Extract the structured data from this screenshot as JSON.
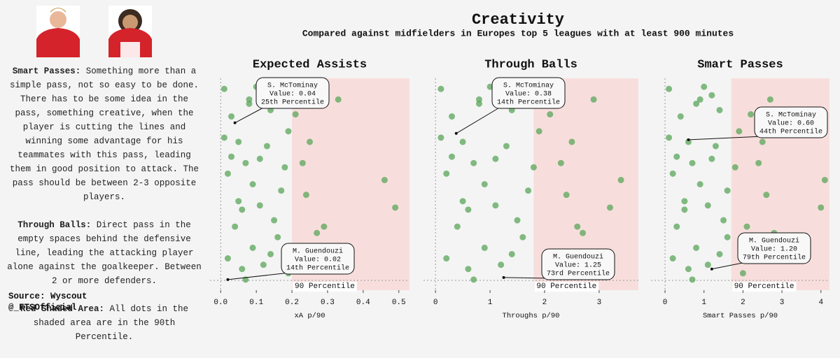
{
  "header": {
    "title": "Creativity",
    "subtitle": "Compared against midfielders in Europes top 5 leagues with at least 900 minutes"
  },
  "sidebar": {
    "items": [
      {
        "label": "Smart Passes:",
        "text": "Something more than a simple pass, not so easy to be done. There has to be some idea in the pass, something creative, when the player is cutting the lines and winning some advantage for his teammates with this pass, leading them in good position to attack. The pass should be between 2-3 opposite players."
      },
      {
        "label": "Through Balls:",
        "text": "Direct pass in the empty spaces behind the defensive line, leading the attacking player alone against the goalkeeper. Between 2 or more defenders."
      },
      {
        "label": "Red Shaded Area:",
        "text": "All dots in the shaded area are in the 90th Percentile."
      }
    ],
    "source": "Source: Wyscout",
    "handle": "@_FTSOfficial"
  },
  "chart_data": [
    {
      "type": "scatter",
      "title": "Expected Assists",
      "x_label": "xA p/90",
      "color": "#5aa55a",
      "shade_color": "#f7dedc",
      "threshold": 0.2,
      "threshold_label": "90 Percentile",
      "xlim": [
        -0.03,
        0.53
      ],
      "ylim": [
        0,
        1
      ],
      "xticks": [
        {
          "value": 0,
          "label": "0.0"
        },
        0.1,
        0.2,
        0.3,
        0.4,
        0.5
      ],
      "x": [
        0.01,
        0.03,
        0.05,
        0.02,
        0.08,
        0.11,
        0.06,
        0.14,
        0.09,
        0.17,
        0.12,
        0.04,
        0.19,
        0.07,
        0.15,
        0.1,
        0.02,
        0.13,
        0.18,
        0.05,
        0.08,
        0.16,
        0.03,
        0.11,
        0.21,
        0.24,
        0.27,
        0.33,
        0.46,
        0.49,
        0.23,
        0.29,
        0.01,
        0.06,
        0.12,
        0.09,
        0.14,
        0.19,
        0.25,
        0.07
      ],
      "y": [
        0.95,
        0.82,
        0.7,
        0.55,
        0.9,
        0.62,
        0.38,
        0.85,
        0.2,
        0.47,
        0.12,
        0.3,
        0.75,
        0.05,
        0.33,
        0.96,
        0.15,
        0.68,
        0.58,
        0.42,
        0.88,
        0.25,
        0.63,
        0.4,
        0.83,
        0.45,
        0.27,
        0.9,
        0.52,
        0.39,
        0.6,
        0.3,
        0.72,
        0.1,
        0.92,
        0.5,
        0.17,
        0.08,
        0.7,
        0.6
      ],
      "highlights": [
        {
          "name": "S. McTominay",
          "value_label": "Value: 0.04",
          "percentile_label": "25th Percentile",
          "x": 0.04,
          "y": 0.79
        },
        {
          "name": "M. Guendouzi",
          "value_label": "Value: 0.02",
          "percentile_label": "14th Percentile",
          "x": 0.02,
          "y": 0.05
        }
      ]
    },
    {
      "type": "scatter",
      "title": "Through Balls",
      "x_label": "Throughs p/90",
      "color": "#5aa55a",
      "shade_color": "#f7dedc",
      "threshold": 1.8,
      "threshold_label": "90 Percentile",
      "xlim": [
        -0.22,
        3.72
      ],
      "ylim": [
        0,
        1
      ],
      "xticks": [
        0,
        1,
        2,
        3
      ],
      "x": [
        0.1,
        0.3,
        0.5,
        0.2,
        0.8,
        1.1,
        0.6,
        1.4,
        0.9,
        1.7,
        1.2,
        0.4,
        1.9,
        0.7,
        1.5,
        1.0,
        0.2,
        1.3,
        1.8,
        0.5,
        0.8,
        1.6,
        0.3,
        1.1,
        2.1,
        2.4,
        2.7,
        2.9,
        3.4,
        3.2,
        2.3,
        2.6,
        0.1,
        0.6,
        1.2,
        0.9,
        1.4,
        2.0,
        2.5,
        0.7
      ],
      "y": [
        0.95,
        0.82,
        0.7,
        0.55,
        0.9,
        0.62,
        0.38,
        0.85,
        0.2,
        0.47,
        0.12,
        0.3,
        0.75,
        0.05,
        0.33,
        0.96,
        0.15,
        0.68,
        0.58,
        0.42,
        0.88,
        0.25,
        0.63,
        0.4,
        0.83,
        0.45,
        0.27,
        0.9,
        0.52,
        0.39,
        0.6,
        0.3,
        0.72,
        0.1,
        0.92,
        0.5,
        0.17,
        0.08,
        0.7,
        0.6
      ],
      "highlights": [
        {
          "name": "S. McTominay",
          "value_label": "Value: 0.38",
          "percentile_label": "14th Percentile",
          "x": 0.38,
          "y": 0.74
        },
        {
          "name": "M. Guendouzi",
          "value_label": "Value: 1.25",
          "percentile_label": "73rd Percentile",
          "x": 1.25,
          "y": 0.06
        }
      ]
    },
    {
      "type": "scatter",
      "title": "Smart Passes",
      "x_label": "Smart Passes p/90",
      "color": "#5aa55a",
      "shade_color": "#f7dedc",
      "threshold": 1.7,
      "threshold_label": "90 Percentile",
      "xlim": [
        -0.36,
        4.22
      ],
      "ylim": [
        0,
        1
      ],
      "xticks": [
        0,
        1,
        2,
        3,
        4
      ],
      "x": [
        0.1,
        0.4,
        0.6,
        0.2,
        0.9,
        1.2,
        0.5,
        1.4,
        0.8,
        1.6,
        1.1,
        0.3,
        1.9,
        0.7,
        1.5,
        1.0,
        0.2,
        1.3,
        1.8,
        0.5,
        0.8,
        1.6,
        0.3,
        1.1,
        2.2,
        2.6,
        2.8,
        2.7,
        4.1,
        4.0,
        2.4,
        2.1,
        0.1,
        0.6,
        1.2,
        0.9,
        1.4,
        2.0,
        2.5,
        0.7
      ],
      "y": [
        0.95,
        0.82,
        0.7,
        0.55,
        0.9,
        0.62,
        0.38,
        0.85,
        0.2,
        0.47,
        0.12,
        0.3,
        0.75,
        0.05,
        0.33,
        0.96,
        0.15,
        0.68,
        0.58,
        0.42,
        0.88,
        0.25,
        0.63,
        0.4,
        0.83,
        0.45,
        0.27,
        0.9,
        0.52,
        0.39,
        0.6,
        0.3,
        0.72,
        0.1,
        0.92,
        0.5,
        0.17,
        0.08,
        0.7,
        0.6
      ],
      "highlights": [
        {
          "name": "S. McTominay",
          "value_label": "Value: 0.60",
          "percentile_label": "44th Percentile",
          "x": 0.6,
          "y": 0.71
        },
        {
          "name": "M. Guendouzi",
          "value_label": "Value: 1.20",
          "percentile_label": "79th Percentile",
          "x": 1.2,
          "y": 0.1
        }
      ]
    }
  ]
}
